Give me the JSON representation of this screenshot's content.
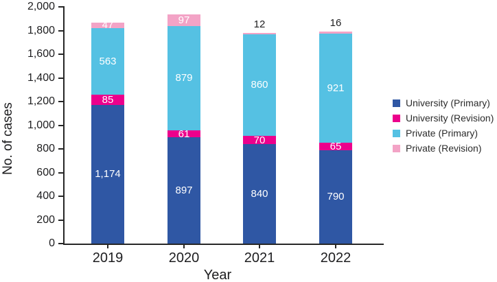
{
  "chart_data": {
    "type": "bar",
    "stacked": true,
    "xlabel": "Year",
    "ylabel": "No. of cases",
    "ylim": [
      0,
      2000
    ],
    "ytick_step": 200,
    "ytick_labels": [
      "0",
      "200",
      "400",
      "600",
      "800",
      "1,000",
      "1,200",
      "1,400",
      "1,600",
      "1,800",
      "2,000"
    ],
    "categories": [
      "2019",
      "2020",
      "2021",
      "2022"
    ],
    "series": [
      {
        "name": "University (Primary)",
        "color": "#2F57A4",
        "values": [
          1174,
          897,
          840,
          790
        ],
        "labels": [
          "1,174",
          "897",
          "840",
          "790"
        ],
        "label_placements": [
          "inside",
          "inside",
          "inside",
          "inside"
        ]
      },
      {
        "name": "University (Revision)",
        "color": "#EC008C",
        "values": [
          85,
          61,
          70,
          65
        ],
        "labels": [
          "85",
          "61",
          "70",
          "65"
        ],
        "label_placements": [
          "inside",
          "inside",
          "inside",
          "inside"
        ]
      },
      {
        "name": "Private (Primary)",
        "color": "#55C1E3",
        "values": [
          563,
          879,
          860,
          921
        ],
        "labels": [
          "563",
          "879",
          "860",
          "921"
        ],
        "label_placements": [
          "inside",
          "inside",
          "inside",
          "inside"
        ]
      },
      {
        "name": "Private (Revision)",
        "color": "#F3A3C6",
        "values": [
          47,
          97,
          12,
          16
        ],
        "labels": [
          "47",
          "97",
          "12",
          "16"
        ],
        "label_placements": [
          "inside",
          "inside",
          "above",
          "above"
        ]
      }
    ],
    "legend_position": "right",
    "grid": false,
    "axis_color": "#262626",
    "inside_label_color": "#FFFFFF",
    "outside_label_color": "#1d1d1f"
  }
}
